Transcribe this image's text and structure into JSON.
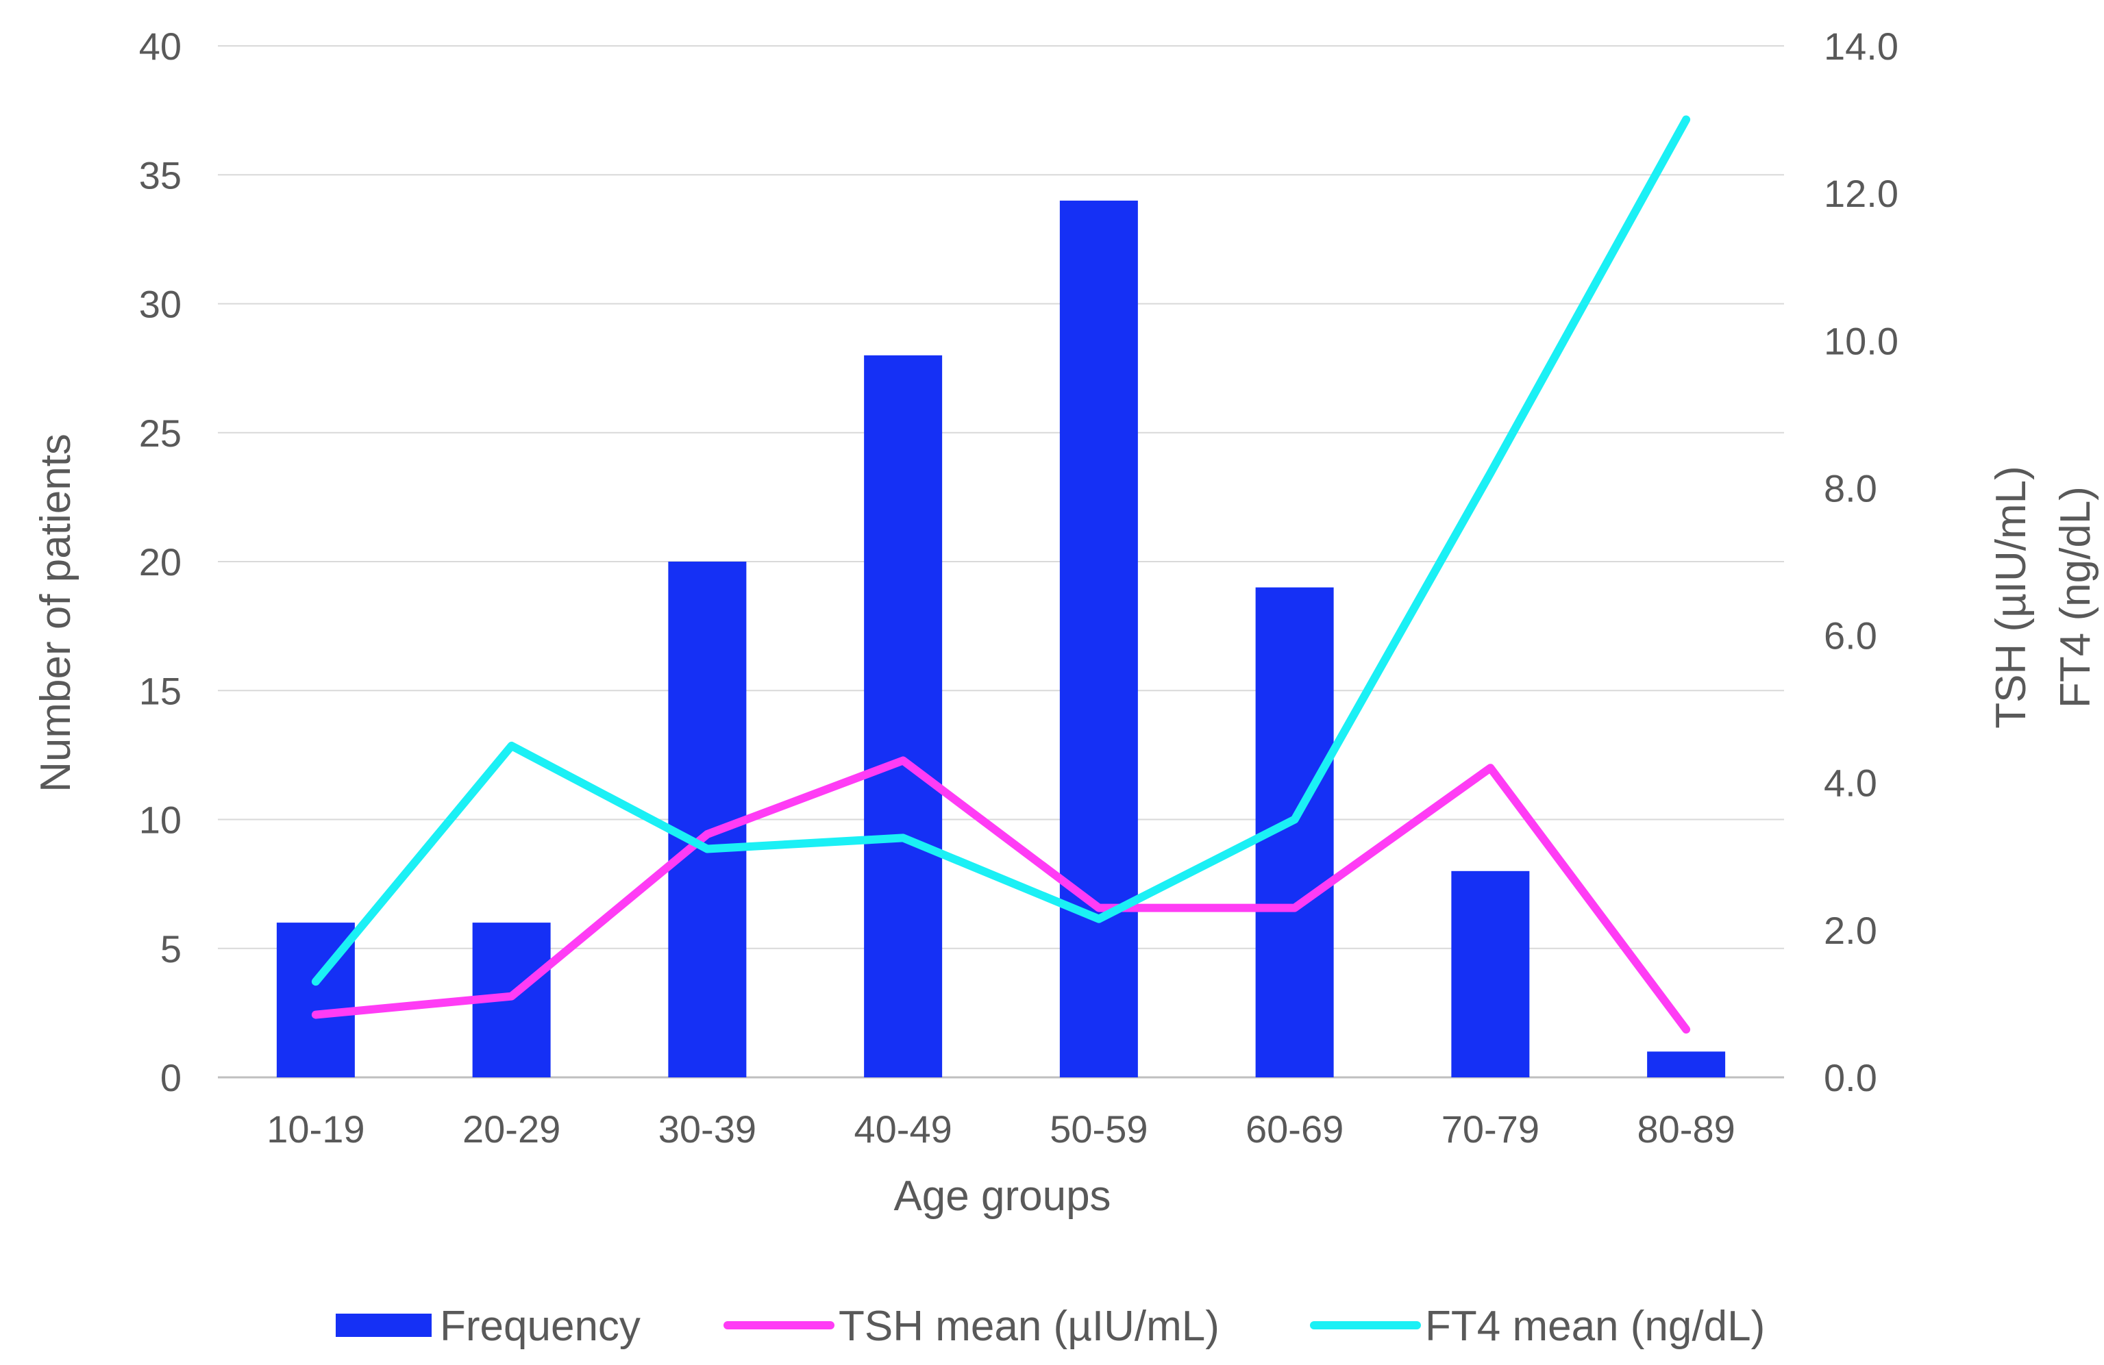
{
  "chart_data": {
    "type": "bar",
    "title": "",
    "categories": [
      "10-19",
      "20-29",
      "30-39",
      "40-49",
      "50-59",
      "60-69",
      "70-79",
      "80-89"
    ],
    "xlabel": "Age groups",
    "ylabel": "Number of patients",
    "y2label_lines": [
      "TSH  (µIU/mL)",
      "FT4 (ng/dL)"
    ],
    "ylim": [
      0,
      40
    ],
    "y_ticks": [
      "0",
      "5",
      "10",
      "15",
      "20",
      "25",
      "30",
      "35",
      "40"
    ],
    "y2lim": [
      0,
      14
    ],
    "y2_ticks": [
      "0.0",
      "2.0",
      "4.0",
      "6.0",
      "8.0",
      "10.0",
      "12.0",
      "14.0"
    ],
    "grid": true,
    "legend_position": "bottom",
    "series": [
      {
        "name": "Frequency",
        "kind": "bar",
        "axis": "left",
        "color": "#1530F5",
        "values": [
          6,
          6,
          20,
          28,
          34,
          19,
          8,
          1
        ]
      },
      {
        "name": "TSH mean (µIU/mL)",
        "kind": "line",
        "axis": "right",
        "color": "#FF3CF5",
        "values": [
          0.85,
          1.1,
          3.3,
          4.3,
          2.3,
          2.3,
          4.2,
          0.65
        ]
      },
      {
        "name": "FT4 mean (ng/dL)",
        "kind": "line",
        "axis": "right",
        "color": "#1BF0F5",
        "values": [
          1.3,
          4.5,
          3.1,
          3.25,
          2.15,
          3.5,
          8.2,
          13.0
        ]
      }
    ]
  }
}
